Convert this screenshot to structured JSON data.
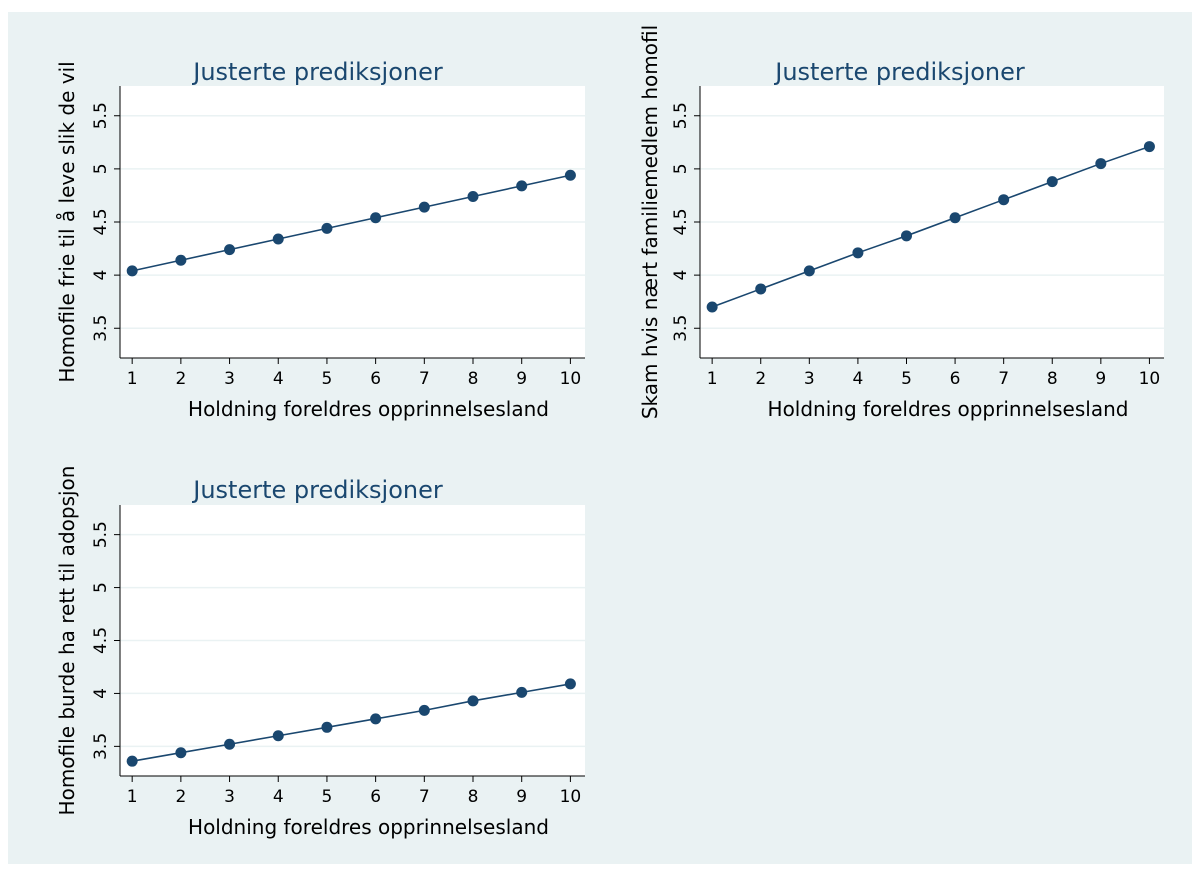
{
  "background_color": "#eaf2f3",
  "plot_color": "#ffffff",
  "series_color": "#1a476f",
  "chart_data": [
    {
      "type": "line",
      "title": "Justerte prediksjoner",
      "xlabel": "Holdning foreldres opprinnelsesland",
      "ylabel": "Homofile frie til å leve slik de vil",
      "x": [
        1,
        2,
        3,
        4,
        5,
        6,
        7,
        8,
        9,
        10
      ],
      "y": [
        4.04,
        4.14,
        4.24,
        4.34,
        4.44,
        4.54,
        4.64,
        4.74,
        4.84,
        4.94
      ],
      "xticks": [
        "1",
        "2",
        "3",
        "4",
        "5",
        "6",
        "7",
        "8",
        "9",
        "10"
      ],
      "yticks": [
        "3.5",
        "4",
        "4.5",
        "5",
        "5.5"
      ],
      "xlim": [
        0.75,
        10.3
      ],
      "ylim": [
        3.22,
        5.78
      ],
      "grid": true
    },
    {
      "type": "line",
      "title": "Justerte prediksjoner",
      "xlabel": "Holdning foreldres opprinnelsesland",
      "ylabel": "Skam hvis nært familiemedlem homofil",
      "x": [
        1,
        2,
        3,
        4,
        5,
        6,
        7,
        8,
        9,
        10
      ],
      "y": [
        3.7,
        3.87,
        4.04,
        4.21,
        4.37,
        4.54,
        4.71,
        4.88,
        5.05,
        5.21
      ],
      "xticks": [
        "1",
        "2",
        "3",
        "4",
        "5",
        "6",
        "7",
        "8",
        "9",
        "10"
      ],
      "yticks": [
        "3.5",
        "4",
        "4.5",
        "5",
        "5.5"
      ],
      "xlim": [
        0.75,
        10.3
      ],
      "ylim": [
        3.22,
        5.78
      ],
      "grid": true
    },
    {
      "type": "line",
      "title": "Justerte prediksjoner",
      "xlabel": "Holdning foreldres opprinnelsesland",
      "ylabel": "Homofile burde ha rett til adopsjon",
      "x": [
        1,
        2,
        3,
        4,
        5,
        6,
        7,
        8,
        9,
        10
      ],
      "y": [
        3.36,
        3.44,
        3.52,
        3.6,
        3.68,
        3.76,
        3.84,
        3.93,
        4.01,
        4.09
      ],
      "xticks": [
        "1",
        "2",
        "3",
        "4",
        "5",
        "6",
        "7",
        "8",
        "9",
        "10"
      ],
      "yticks": [
        "3.5",
        "4",
        "4.5",
        "5",
        "5.5"
      ],
      "xlim": [
        0.75,
        10.3
      ],
      "ylim": [
        3.22,
        5.78
      ],
      "grid": true
    }
  ]
}
